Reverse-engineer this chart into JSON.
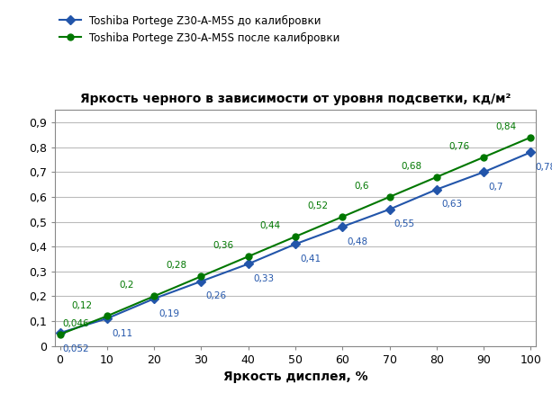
{
  "title": "Яркость черного в зависимости от уровня подсветки, кд/м²",
  "xlabel": "Яркость дисплея, %",
  "x": [
    0,
    10,
    20,
    30,
    40,
    50,
    60,
    70,
    80,
    90,
    100
  ],
  "blue_values": [
    0.052,
    0.11,
    0.19,
    0.26,
    0.33,
    0.41,
    0.48,
    0.55,
    0.63,
    0.7,
    0.78
  ],
  "green_values": [
    0.046,
    0.12,
    0.2,
    0.28,
    0.36,
    0.44,
    0.52,
    0.6,
    0.68,
    0.76,
    0.84
  ],
  "blue_label": "Toshiba Portege Z30-A-M5S до калибровки",
  "green_label": "Toshiba Portege Z30-A-M5S после калибровки",
  "blue_color": "#2255AA",
  "green_color": "#007700",
  "ylim": [
    0,
    0.95
  ],
  "xlim": [
    -1,
    101
  ],
  "yticks": [
    0,
    0.1,
    0.2,
    0.3,
    0.4,
    0.5,
    0.6,
    0.7,
    0.8,
    0.9
  ],
  "xticks": [
    0,
    10,
    20,
    30,
    40,
    50,
    60,
    70,
    80,
    90,
    100
  ],
  "background_color": "#FFFFFF",
  "grid_color": "#BBBBBB",
  "blue_label_dx": [
    0.5,
    1.0,
    1.0,
    1.0,
    1.0,
    1.0,
    1.0,
    1.0,
    1.0,
    1.0,
    1.0
  ],
  "blue_label_dy": [
    -0.045,
    -0.042,
    -0.042,
    -0.042,
    -0.042,
    -0.042,
    -0.042,
    -0.042,
    -0.042,
    -0.042,
    -0.042
  ],
  "green_label_dx": [
    0.5,
    -7.5,
    -7.5,
    -7.5,
    -7.5,
    -7.5,
    -7.5,
    -7.5,
    -7.5,
    -7.5,
    -7.5
  ],
  "green_label_dy": [
    0.025,
    0.025,
    0.025,
    0.025,
    0.025,
    0.025,
    0.025,
    0.025,
    0.025,
    0.025,
    0.025
  ]
}
